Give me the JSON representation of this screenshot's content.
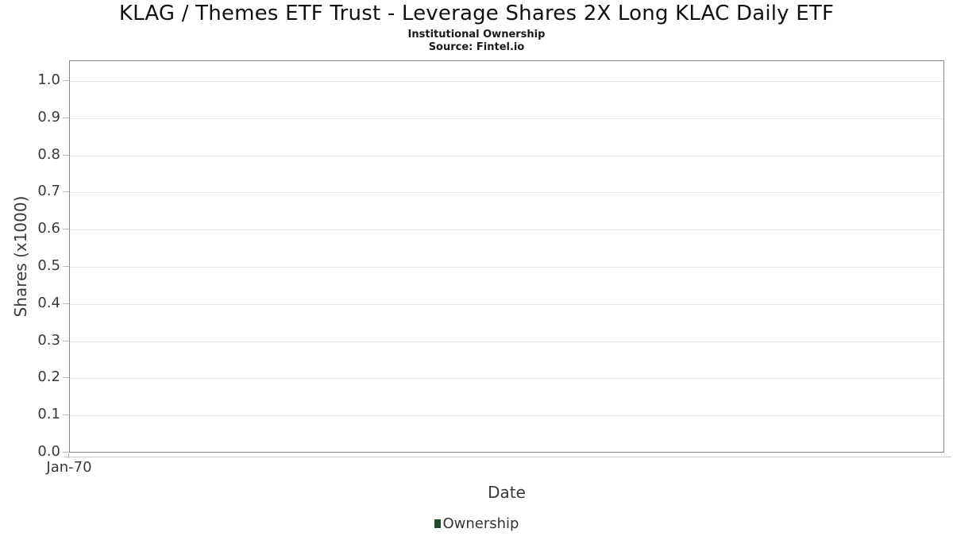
{
  "header": {
    "title": "KLAG / Themes ETF Trust - Leverage Shares 2X Long KLAC Daily ETF",
    "subtitle": "Institutional Ownership",
    "source": "Source: Fintel.io"
  },
  "chart_data": {
    "type": "line",
    "title": "KLAG / Themes ETF Trust - Leverage Shares 2X Long KLAC Daily ETF",
    "subtitle": "Institutional Ownership",
    "source": "Source: Fintel.io",
    "xlabel": "Date",
    "ylabel": "Shares (x1000)",
    "x_tick_labels": [
      "Jan-70"
    ],
    "y_ticks": [
      {
        "label": "1.0",
        "value": 1.0
      },
      {
        "label": "0.9",
        "value": 0.9
      },
      {
        "label": "0.8",
        "value": 0.8
      },
      {
        "label": "0.7",
        "value": 0.7
      },
      {
        "label": "0.6",
        "value": 0.6
      },
      {
        "label": "0.5",
        "value": 0.5
      },
      {
        "label": "0.4",
        "value": 0.4
      },
      {
        "label": "0.3",
        "value": 0.3
      },
      {
        "label": "0.2",
        "value": 0.2
      },
      {
        "label": "0.1",
        "value": 0.1
      },
      {
        "label": "0.0",
        "value": 0.0
      }
    ],
    "ylim": [
      0,
      1.055
    ],
    "grid": true,
    "legend": {
      "position": "bottom",
      "entries": [
        {
          "label": "Ownership",
          "color": "#1e4d28"
        }
      ]
    },
    "series": [
      {
        "name": "Ownership",
        "x": [],
        "y": []
      }
    ]
  },
  "colors": {
    "legend_marker": "#1e4d28",
    "gridline": "#e9e9e9",
    "plot_border": "#858585",
    "axis_line": "#cccccc",
    "tick_mark": "#b8b8b8",
    "text": "#3a3a3a",
    "title_text": "#111111"
  }
}
